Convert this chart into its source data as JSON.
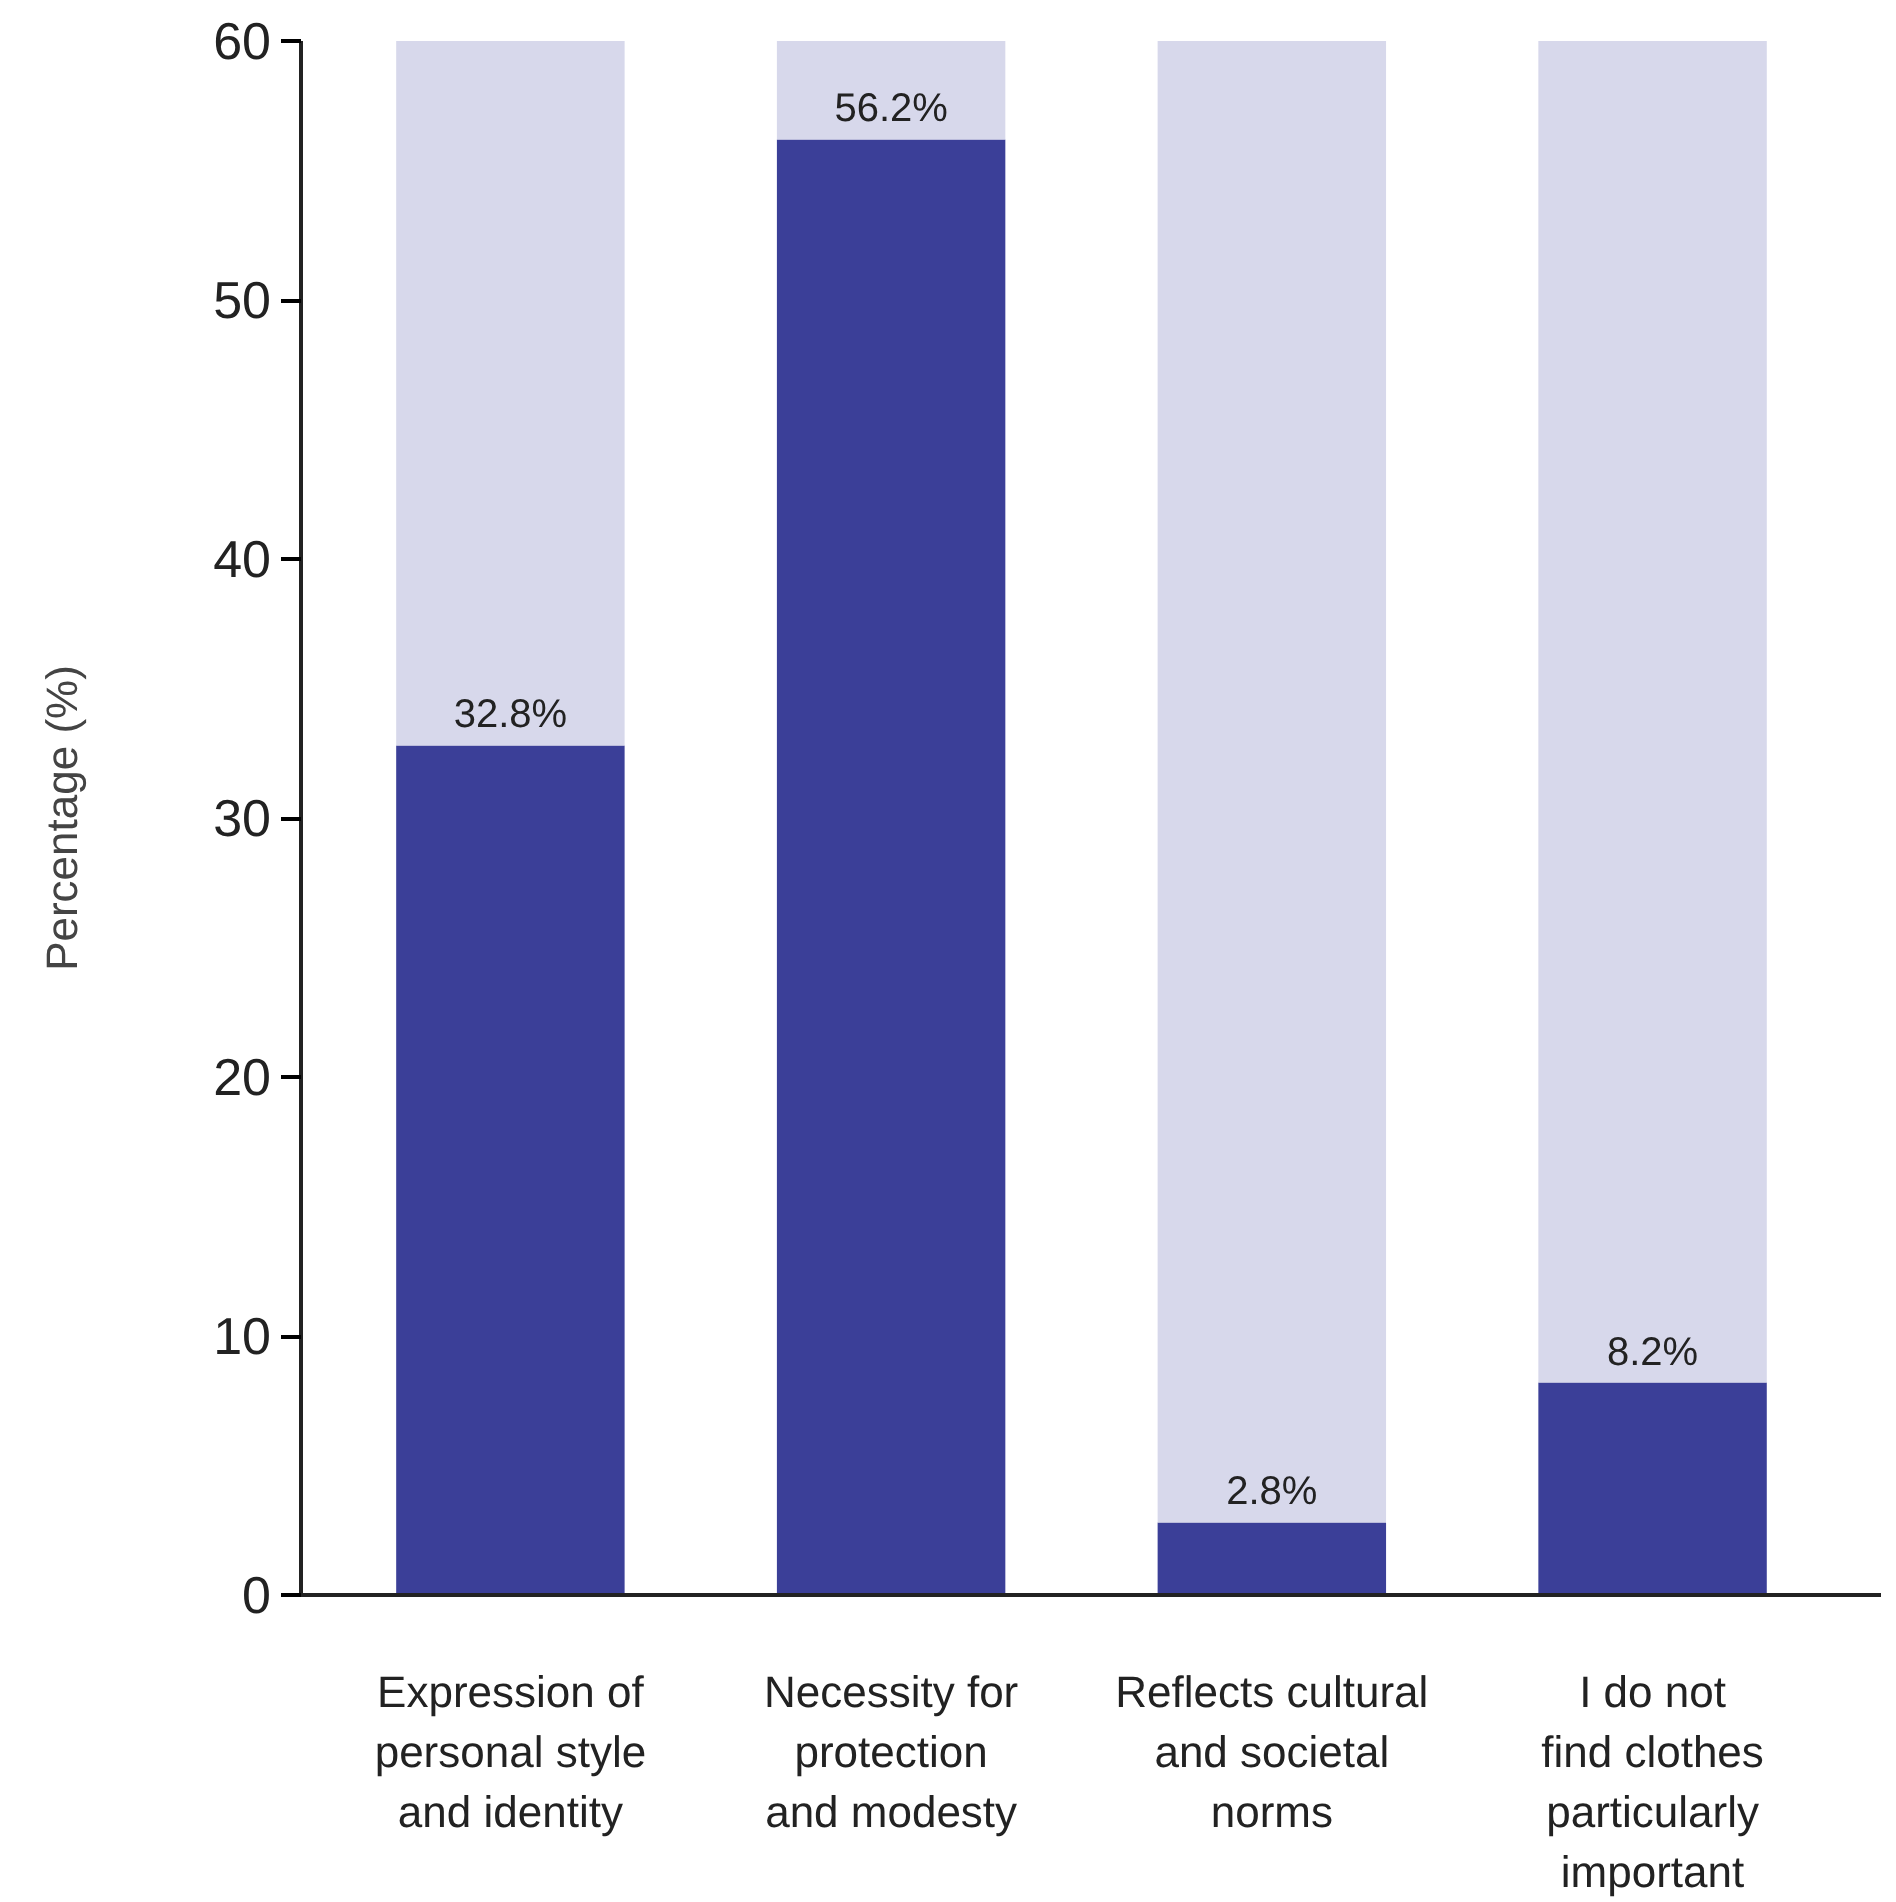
{
  "chart_data": {
    "type": "bar",
    "ylabel": "Percentage (%)",
    "categories": [
      "Expression of\npersonal style\nand identity",
      "Necessity for\nprotection\nand modesty",
      "Reflects cultural\nand societal\nnorms",
      "I do not\nfind clothes\nparticularly\nimportant"
    ],
    "stacked": true,
    "series": [
      {
        "color": "#3b3f98",
        "values": [
          32.8,
          56.2,
          2.8,
          8.2
        ],
        "value_labels": [
          "32.8%",
          "56.2%",
          "2.8%",
          "8.2%"
        ]
      },
      {
        "color": "#d7d8eb",
        "values": [
          27.2,
          3.8,
          57.2,
          51.8
        ]
      }
    ],
    "ylim": [
      0,
      60
    ],
    "yticks": [
      0,
      10,
      20,
      30,
      40,
      50,
      60
    ],
    "grid": false
  }
}
